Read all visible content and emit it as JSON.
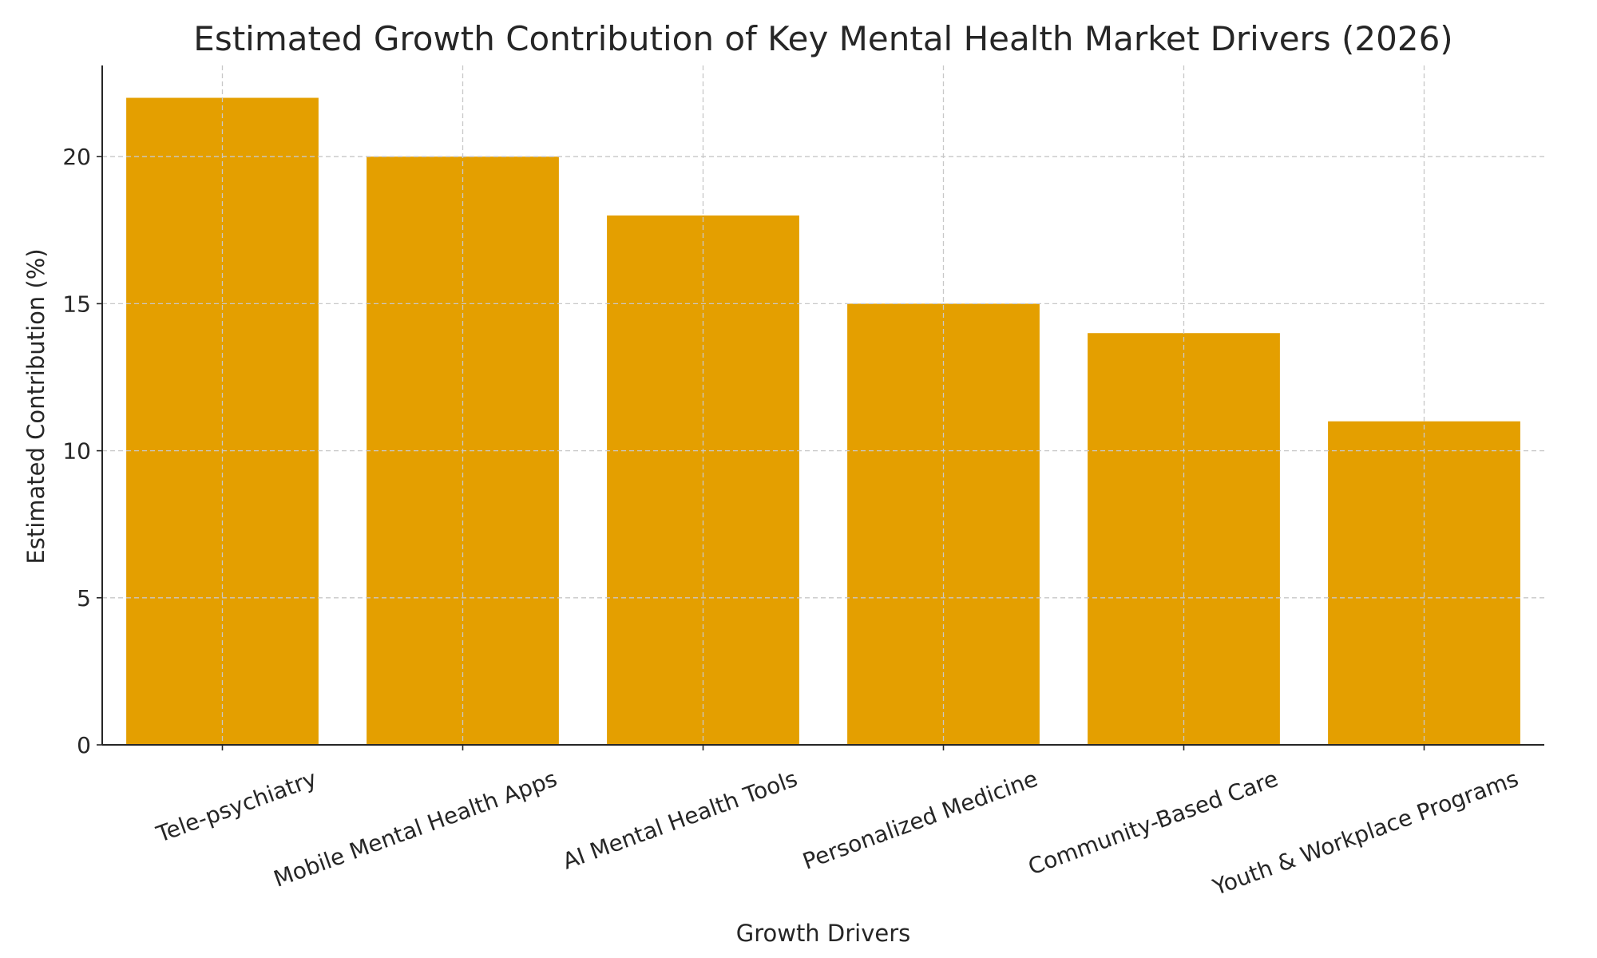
{
  "chart_data": {
    "type": "bar",
    "title": "Estimated Growth Contribution of Key Mental Health Market Drivers (2026)",
    "xlabel": "Growth Drivers",
    "ylabel": "Estimated Contribution (%)",
    "categories": [
      "Tele-psychiatry",
      "Mobile Mental Health Apps",
      "AI Mental Health Tools",
      "Personalized Medicine",
      "Community-Based Care",
      "Youth & Workplace Programs"
    ],
    "values": [
      22,
      20,
      18,
      15,
      14,
      11
    ],
    "ylim": [
      0,
      23.1
    ],
    "yticks": [
      0,
      5,
      10,
      15,
      20
    ],
    "ytick_labels": [
      "0",
      "5",
      "10",
      "15",
      "20"
    ],
    "grid": true,
    "bar_color": "#E49F00",
    "xtick_rotation_deg": 20
  }
}
